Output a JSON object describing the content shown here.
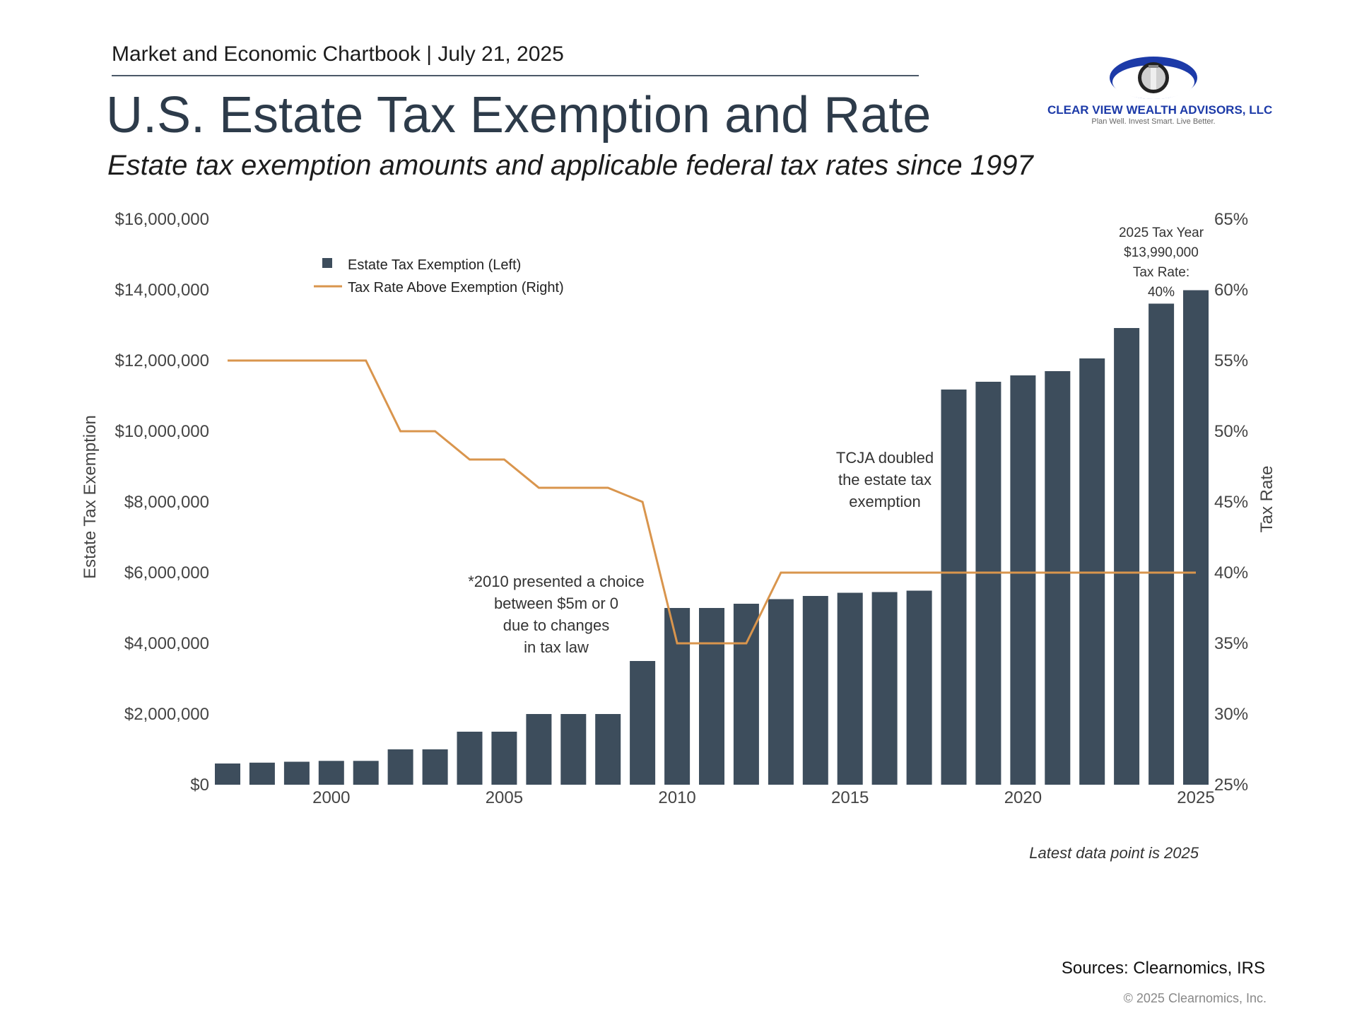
{
  "header": {
    "chartbook": "Market and Economic Chartbook | July 21, 2025",
    "title": "U.S. Estate Tax Exemption and Rate",
    "subtitle": "Estate tax exemption amounts and applicable federal tax rates since 1997"
  },
  "logo": {
    "name": "CLEAR VIEW WEALTH ADVISORS, LLC",
    "tagline": "Plan Well. Invest Smart. Live Better.",
    "icon": "eye-lighthouse-icon"
  },
  "colors": {
    "bar": "#3d4d5c",
    "line": "#d9954d",
    "text": "#444444"
  },
  "chart_data": {
    "type": "bar",
    "x": [
      1997,
      1998,
      1999,
      2000,
      2001,
      2002,
      2003,
      2004,
      2005,
      2006,
      2007,
      2008,
      2009,
      2010,
      2011,
      2012,
      2013,
      2014,
      2015,
      2016,
      2017,
      2018,
      2019,
      2020,
      2021,
      2022,
      2023,
      2024,
      2025
    ],
    "series": [
      {
        "name": "Estate Tax Exemption (Left)",
        "kind": "bar",
        "axis": "left",
        "values": [
          600000,
          625000,
          650000,
          675000,
          675000,
          1000000,
          1000000,
          1500000,
          1500000,
          2000000,
          2000000,
          2000000,
          3500000,
          5000000,
          5000000,
          5120000,
          5250000,
          5340000,
          5430000,
          5450000,
          5490000,
          11180000,
          11400000,
          11580000,
          11700000,
          12060000,
          12920000,
          13610000,
          13990000
        ]
      },
      {
        "name": "Tax Rate Above Exemption (Right)",
        "kind": "line",
        "axis": "right",
        "values": [
          55,
          55,
          55,
          55,
          55,
          50,
          50,
          48,
          48,
          46,
          46,
          46,
          45,
          35,
          35,
          35,
          40,
          40,
          40,
          40,
          40,
          40,
          40,
          40,
          40,
          40,
          40,
          40,
          40
        ]
      }
    ],
    "ylabel": "Estate Tax Exemption",
    "y2label": "Tax Rate",
    "ylim": [
      0,
      16000000
    ],
    "y2lim": [
      25,
      65
    ],
    "yticks": [
      "$0",
      "$2,000,000",
      "$4,000,000",
      "$6,000,000",
      "$8,000,000",
      "$10,000,000",
      "$12,000,000",
      "$14,000,000",
      "$16,000,000"
    ],
    "y2ticks": [
      "25%",
      "30%",
      "35%",
      "40%",
      "45%",
      "50%",
      "55%",
      "60%",
      "65%"
    ],
    "xticks": [
      "2000",
      "2005",
      "2010",
      "2015",
      "2020",
      "2025"
    ],
    "legend_position": "top-left",
    "grid": false,
    "annotations": {
      "tcja": [
        "TCJA doubled",
        "the estate tax",
        "exemption"
      ],
      "note_2010": [
        "*2010 presented a choice",
        "between $5m or 0",
        "due to changes",
        "in tax law"
      ],
      "latest": [
        "2025 Tax Year",
        "$13,990,000",
        "Tax Rate:",
        "40%"
      ]
    }
  },
  "footer": {
    "note": "Latest data point is 2025",
    "sources": "Sources: Clearnomics, IRS",
    "copyright": "© 2025 Clearnomics, Inc."
  }
}
